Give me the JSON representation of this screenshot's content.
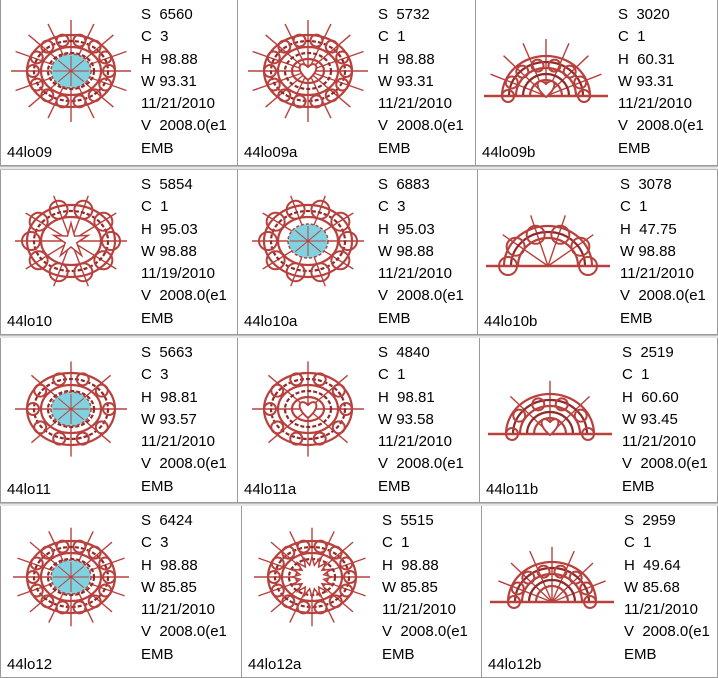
{
  "colors": {
    "stitch": "#b8413d",
    "stitch_dark": "#8e2a28",
    "accent": "#7fd3e0"
  },
  "rows": [
    [
      {
        "name": "44lo09",
        "s": "S  6560",
        "c": "C  3",
        "h": "H  98.88",
        "w": "W 93.31",
        "date": "11/21/2010",
        "v": "V  2008.0(e1",
        "fmt": "EMB",
        "shape": "oval",
        "center": "cyan"
      },
      {
        "name": "44lo09a",
        "s": "S  5732",
        "c": "C  1",
        "h": "H  98.88",
        "w": "W 93.31",
        "date": "11/21/2010",
        "v": "V  2008.0(e1",
        "fmt": "EMB",
        "shape": "oval",
        "center": "heart"
      },
      {
        "name": "44lo09b",
        "s": "S  3020",
        "c": "C  1",
        "h": "H  60.31",
        "w": "W 93.31",
        "date": "11/21/2010",
        "v": "V  2008.0(e1",
        "fmt": "EMB",
        "shape": "half",
        "center": "heart"
      }
    ],
    [
      {
        "name": "44lo10",
        "s": "S  5854",
        "c": "C  1",
        "h": "H  95.03",
        "w": "W 98.88",
        "date": "11/19/2010",
        "v": "V  2008.0(e1",
        "fmt": "EMB",
        "shape": "flower",
        "center": "star"
      },
      {
        "name": "44lo10a",
        "s": "S  6883",
        "c": "C  3",
        "h": "H  95.03",
        "w": "W 98.88",
        "date": "11/21/2010",
        "v": "V  2008.0(e1",
        "fmt": "EMB",
        "shape": "flower",
        "center": "cyan"
      },
      {
        "name": "44lo10b",
        "s": "S  3078",
        "c": "C  1",
        "h": "H  47.75",
        "w": "W 98.88",
        "date": "11/21/2010",
        "v": "V  2008.0(e1",
        "fmt": "EMB",
        "shape": "halfflower",
        "center": "none"
      }
    ],
    [
      {
        "name": "44lo11",
        "s": "S  5663",
        "c": "C  3",
        "h": "H  98.81",
        "w": "W 93.57",
        "date": "11/21/2010",
        "v": "V  2008.0(e1",
        "fmt": "EMB",
        "shape": "star",
        "center": "cyan"
      },
      {
        "name": "44lo11a",
        "s": "S  4840",
        "c": "C  1",
        "h": "H  98.81",
        "w": "W 93.58",
        "date": "11/21/2010",
        "v": "V  2008.0(e1",
        "fmt": "EMB",
        "shape": "star",
        "center": "heart"
      },
      {
        "name": "44lo11b",
        "s": "S  2519",
        "c": "C  1",
        "h": "H  60.60",
        "w": "W 93.45",
        "date": "11/21/2010",
        "v": "V  2008.0(e1",
        "fmt": "EMB",
        "shape": "halfstar",
        "center": "heart"
      }
    ],
    [
      {
        "name": "44lo12",
        "s": "S  6424",
        "c": "C  3",
        "h": "H  98.88",
        "w": "W 85.85",
        "date": "11/21/2010",
        "v": "V  2008.0(e1",
        "fmt": "EMB",
        "shape": "hex",
        "center": "cyan"
      },
      {
        "name": "44lo12a",
        "s": "S  5515",
        "c": "C  1",
        "h": "H  98.88",
        "w": "W 85.85",
        "date": "11/21/2010",
        "v": "V  2008.0(e1",
        "fmt": "EMB",
        "shape": "hex",
        "center": "sun"
      },
      {
        "name": "44lo12b",
        "s": "S  2959",
        "c": "C  1",
        "h": "H  49.64",
        "w": "W 85.68",
        "date": "11/21/2010",
        "v": "V  2008.0(e1",
        "fmt": "EMB",
        "shape": "halfhex",
        "center": "none"
      }
    ]
  ]
}
